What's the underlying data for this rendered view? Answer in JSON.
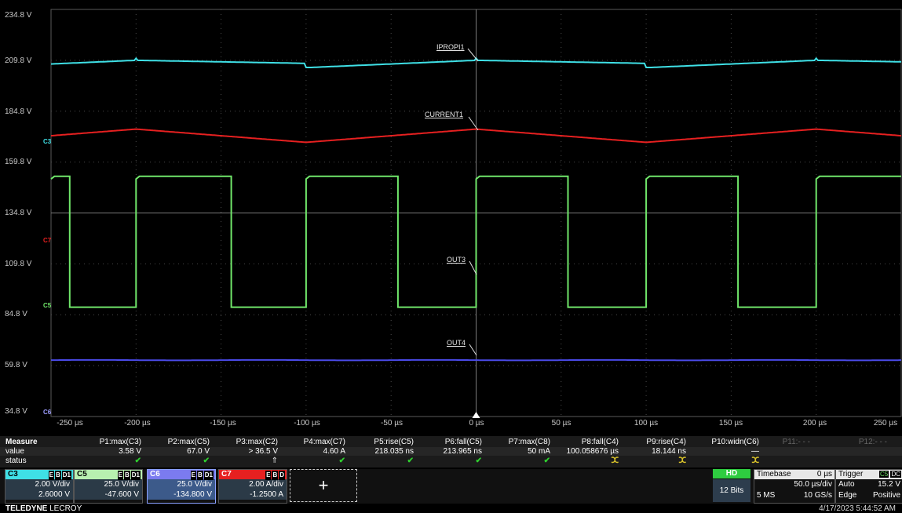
{
  "y_ticks": [
    "234.8 V",
    "209.8 V",
    "184.8 V",
    "159.8 V",
    "134.8 V",
    "109.8 V",
    "84.8 V",
    "59.8 V",
    "34.8 V"
  ],
  "x_ticks": [
    "-250 µs",
    "-200 µs",
    "-150 µs",
    "-100 µs",
    "-50 µs",
    "0 µs",
    "50 µs",
    "100 µs",
    "150 µs",
    "200 µs",
    "250 µs"
  ],
  "trace_labels": {
    "iprop": "IPROPI1",
    "current": "CURRENT1",
    "out3": "OUT3",
    "out4": "OUT4"
  },
  "channel_markers": {
    "c3": "C3",
    "c7": "C7",
    "c5": "C5",
    "c6": "C6"
  },
  "colors": {
    "c3": "#3fe0e6",
    "c5": "#70e66a",
    "c6": "#4a4ae8",
    "c7": "#e62020",
    "grid": "#4a4a4a",
    "hd": "#2ecc40"
  },
  "measure": {
    "title": "Measure",
    "row_labels": [
      "value",
      "status"
    ],
    "params": [
      {
        "name": "P1:max(C3)",
        "value": "3.58 V",
        "status": "✔"
      },
      {
        "name": "P2:max(C5)",
        "value": "67.0 V",
        "status": "✔"
      },
      {
        "name": "P3:max(C2)",
        "value": "> 36.5 V",
        "status": "⇑"
      },
      {
        "name": "P4:max(C7)",
        "value": "4.60 A",
        "status": "✔"
      },
      {
        "name": "P5:rise(C5)",
        "value": "218.035 ns",
        "status": "✔"
      },
      {
        "name": "P6:fall(C5)",
        "value": "213.965 ns",
        "status": "✔"
      },
      {
        "name": "P7:max(C8)",
        "value": "50 mA",
        "status": "✔"
      },
      {
        "name": "P8:fall(C4)",
        "value": "100.058676 µs",
        "status": "ⵋ"
      },
      {
        "name": "P9:rise(C4)",
        "value": "18.144 ns",
        "status": "ⵋ"
      },
      {
        "name": "P10:widn(C6)",
        "value": "—",
        "status": "ⵋ"
      },
      {
        "name": "P11:- - -",
        "value": "",
        "status": ""
      },
      {
        "name": "P12:- - -",
        "value": "",
        "status": ""
      }
    ]
  },
  "channels": [
    {
      "name": "C3",
      "scale": "2.00 V/div",
      "offset": "2.6000 V",
      "badges": [
        "E",
        "B",
        "D1"
      ]
    },
    {
      "name": "C5",
      "scale": "25.0 V/div",
      "offset": "-47.600 V",
      "badges": [
        "E",
        "B",
        "D1"
      ]
    },
    {
      "name": "C6",
      "scale": "25.0 V/div",
      "offset": "-134.800 V",
      "badges": [
        "E",
        "B",
        "D1"
      ]
    },
    {
      "name": "C7",
      "scale": "2.00 A/div",
      "offset": "-1.2500 A",
      "badges": [
        "E",
        "B",
        "D"
      ]
    }
  ],
  "add_label": "+",
  "acq": {
    "hd": "HD",
    "bits": "12 Bits"
  },
  "timebase": {
    "label": "Timebase",
    "delay": "0 µs",
    "per_div": "50.0 µs/div",
    "points": "5 MS",
    "rate": "10 GS/s"
  },
  "trigger": {
    "label": "Trigger",
    "source": "C5",
    "coupling": "DC",
    "mode": "Auto",
    "type": "Edge",
    "level": "15.2 V",
    "slope": "Positive"
  },
  "footer": {
    "brand": "TELEDYNE",
    "brand2": " LECROY",
    "timestamp": "4/17/2023 5:44:52 AM"
  }
}
